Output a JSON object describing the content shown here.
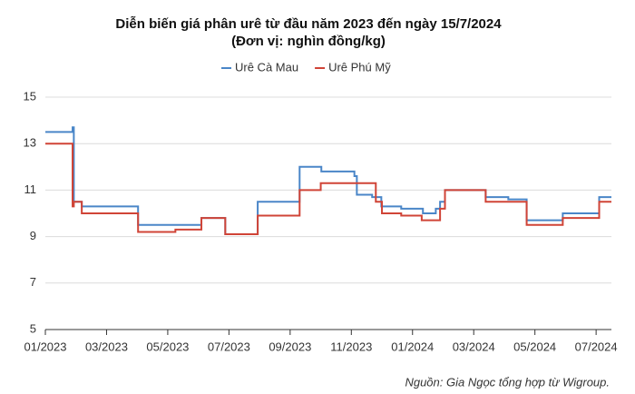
{
  "chart_data": {
    "type": "line",
    "title": "Diễn biến giá phân urê từ đầu năm 2023 đến ngày 15/7/2024",
    "subtitle": "(Đơn vị: nghìn đồng/kg)",
    "source": "Nguồn: Gia Ngọc tổng hợp từ Wigroup.",
    "xlim": [
      0,
      18.5
    ],
    "xticks": [
      {
        "value": 0,
        "label": "01/2023"
      },
      {
        "value": 2,
        "label": "03/2023"
      },
      {
        "value": 4,
        "label": "05/2023"
      },
      {
        "value": 6,
        "label": "07/2023"
      },
      {
        "value": 8,
        "label": "09/2023"
      },
      {
        "value": 10,
        "label": "11/2023"
      },
      {
        "value": 12,
        "label": "01/2024"
      },
      {
        "value": 14,
        "label": "03/2024"
      },
      {
        "value": 16,
        "label": "05/2024"
      },
      {
        "value": 18,
        "label": "07/2024"
      }
    ],
    "ylim": [
      5,
      15
    ],
    "yticks": [
      5,
      7,
      9,
      11,
      13,
      15
    ],
    "grid": true,
    "series": [
      {
        "name": "Urê Cà Mau",
        "color": "#4a86c8",
        "x": [
          0,
          0.89,
          0.89,
          0.93,
          0.93,
          1.19,
          1.19,
          3.03,
          3.03,
          5.1,
          5.1,
          5.88,
          5.88,
          6.94,
          6.94,
          8.31,
          8.31,
          9.02,
          9.02,
          10.1,
          10.1,
          10.18,
          10.18,
          10.68,
          10.68,
          10.98,
          10.98,
          11.63,
          11.63,
          12.34,
          12.34,
          12.76,
          12.76,
          12.9,
          12.9,
          13.06,
          13.06,
          14.39,
          14.39,
          15.13,
          15.13,
          15.73,
          15.73,
          16.91,
          16.91,
          18.1,
          18.1,
          18.5
        ],
        "values": [
          13.5,
          13.5,
          13.7,
          13.7,
          10.5,
          10.5,
          10.3,
          10.3,
          9.5,
          9.5,
          9.8,
          9.8,
          9.1,
          9.1,
          10.5,
          10.5,
          12.0,
          12.0,
          11.8,
          11.8,
          11.6,
          11.6,
          10.8,
          10.8,
          10.7,
          10.7,
          10.3,
          10.3,
          10.2,
          10.2,
          10.0,
          10.0,
          10.2,
          10.2,
          10.5,
          10.5,
          11.0,
          11.0,
          10.7,
          10.7,
          10.6,
          10.6,
          9.7,
          9.7,
          10.0,
          10.0,
          10.7,
          10.7
        ]
      },
      {
        "name": "Urê Phú Mỹ",
        "color": "#d04437",
        "x": [
          0,
          0.89,
          0.89,
          0.93,
          0.93,
          1.19,
          1.19,
          3.03,
          3.03,
          4.25,
          4.25,
          5.1,
          5.1,
          5.88,
          5.88,
          6.94,
          6.94,
          8.31,
          8.31,
          9.0,
          9.0,
          10.8,
          10.8,
          11.0,
          11.0,
          11.63,
          11.63,
          12.3,
          12.3,
          12.9,
          12.9,
          13.06,
          13.06,
          14.39,
          14.39,
          15.73,
          15.73,
          16.91,
          16.91,
          18.1,
          18.1,
          18.5
        ],
        "values": [
          13.0,
          13.0,
          10.3,
          10.3,
          10.5,
          10.5,
          10.0,
          10.0,
          9.2,
          9.2,
          9.3,
          9.3,
          9.8,
          9.8,
          9.1,
          9.1,
          9.9,
          9.9,
          11.0,
          11.0,
          11.3,
          11.3,
          10.5,
          10.5,
          10.0,
          10.0,
          9.9,
          9.9,
          9.7,
          9.7,
          10.2,
          10.2,
          11.0,
          11.0,
          10.5,
          10.5,
          9.5,
          9.5,
          9.8,
          9.8,
          10.5,
          10.5
        ]
      }
    ]
  }
}
